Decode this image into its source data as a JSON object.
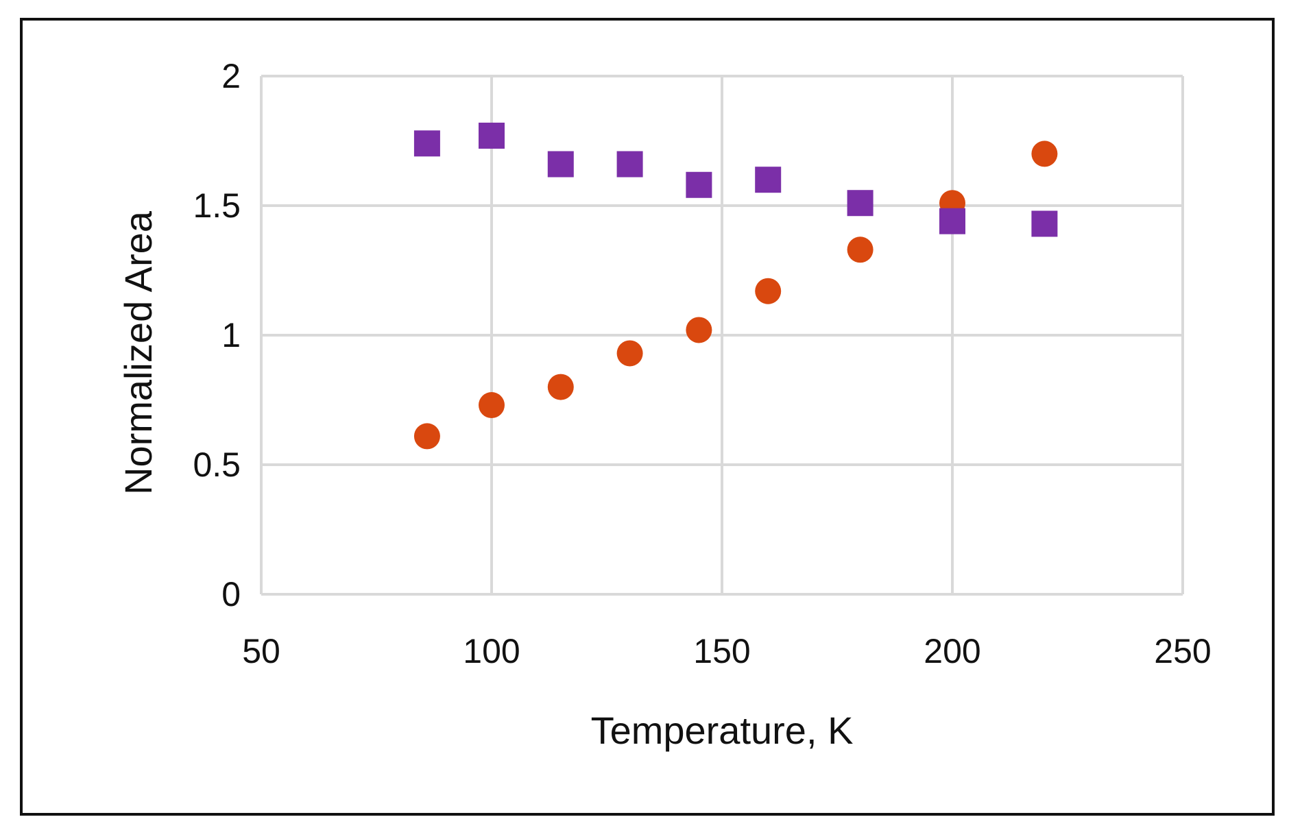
{
  "chart_data": {
    "type": "scatter",
    "title": "",
    "xlabel": "Temperature, K",
    "ylabel": "Normalized Area",
    "xlim": [
      50,
      250
    ],
    "ylim": [
      0,
      2
    ],
    "xticks": [
      50,
      100,
      150,
      200,
      250
    ],
    "yticks": [
      0,
      0.5,
      1,
      1.5,
      2
    ],
    "xtick_labels": [
      "50",
      "100",
      "150",
      "200",
      "250"
    ],
    "ytick_labels": [
      "0",
      "0.5",
      "1",
      "1.5",
      "2"
    ],
    "grid": true,
    "legend": "none",
    "series": [
      {
        "name": "circles",
        "marker": "circle",
        "color": "#d9480f",
        "x": [
          86,
          100,
          115,
          130,
          145,
          160,
          180,
          200,
          220
        ],
        "y": [
          0.61,
          0.73,
          0.8,
          0.93,
          1.02,
          1.17,
          1.33,
          1.51,
          1.7
        ]
      },
      {
        "name": "squares",
        "marker": "square",
        "color": "#7b2fa8",
        "x": [
          86,
          100,
          115,
          130,
          145,
          160,
          180,
          200,
          220
        ],
        "y": [
          1.74,
          1.77,
          1.66,
          1.66,
          1.58,
          1.6,
          1.51,
          1.44,
          1.43
        ]
      }
    ]
  }
}
